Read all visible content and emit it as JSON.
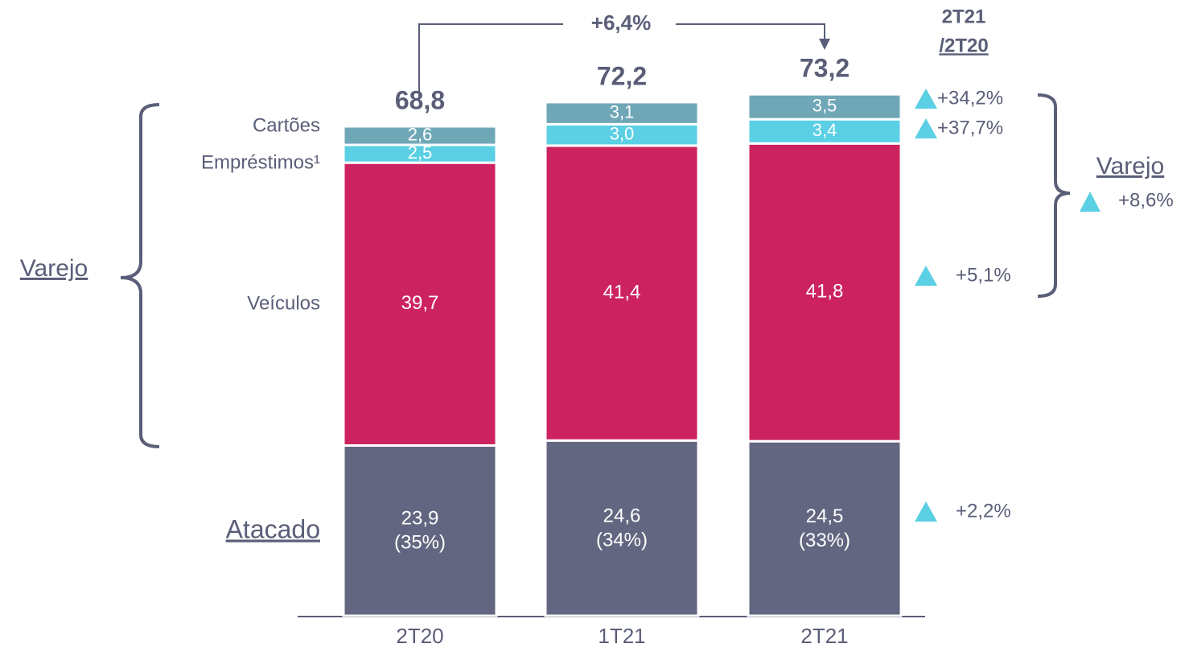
{
  "chart_data": {
    "type": "stacked_bar",
    "categories": [
      "2T20",
      "1T21",
      "2T21"
    ],
    "series": [
      {
        "name": "Atacado",
        "color": "#636680",
        "values": [
          23.9,
          24.6,
          24.5
        ],
        "value_labels": [
          "23,9",
          "24,6",
          "24,5"
        ],
        "shares": [
          35,
          34,
          33
        ],
        "share_labels": [
          "(35%)",
          "(34%)",
          "(33%)"
        ],
        "change_label": "+2,2%"
      },
      {
        "name": "Veículos",
        "color": "#cc2360",
        "values": [
          39.7,
          41.4,
          41.8
        ],
        "value_labels": [
          "39,7",
          "41,4",
          "41,8"
        ],
        "change_label": "+5,1%"
      },
      {
        "name": "Empréstimos¹",
        "color": "#5bcfe4",
        "values": [
          2.5,
          3.0,
          3.4
        ],
        "value_labels": [
          "2,5",
          "3,0",
          "3,4"
        ],
        "change_label": "+37,7%"
      },
      {
        "name": "Cartões",
        "color": "#6fa7b7",
        "values": [
          2.6,
          3.1,
          3.5
        ],
        "value_labels": [
          "2,6",
          "3,1",
          "3,5"
        ],
        "change_label": "+34,2%"
      }
    ],
    "totals": [
      68.8,
      72.2,
      73.2
    ],
    "total_labels": [
      "68,8",
      "72,2",
      "73,2"
    ],
    "total_change_label": "+6,4%",
    "change_header": [
      "2T21",
      "/2T20"
    ],
    "group": {
      "name": "Varejo",
      "change_label": "+8,6%"
    }
  }
}
